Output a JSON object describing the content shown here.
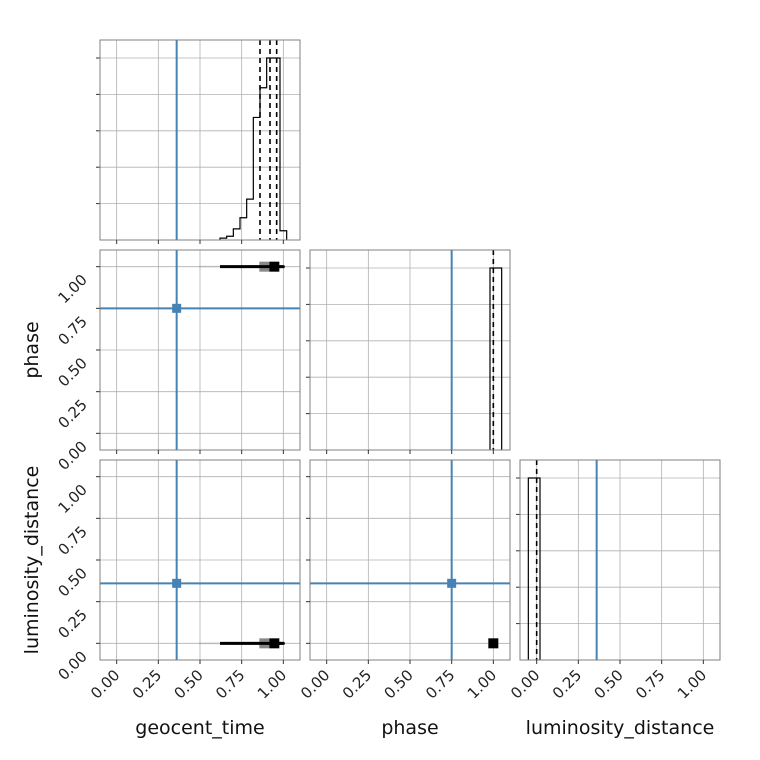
{
  "chart_data": {
    "type": "corner",
    "parameters": [
      "geocent_time",
      "phase",
      "luminosity_distance"
    ],
    "axis_range": [
      -0.1,
      1.1
    ],
    "ticks": [
      0.0,
      0.25,
      0.5,
      0.75,
      1.0
    ],
    "tick_labels": [
      "0.00",
      "0.25",
      "0.50",
      "0.75",
      "1.00"
    ],
    "grid": true,
    "truths": {
      "geocent_time": 0.36,
      "phase": 0.75,
      "luminosity_distance": 0.36,
      "color": "#4682b4"
    },
    "quantiles": {
      "geocent_time": [
        0.86,
        0.92,
        0.96
      ],
      "phase": [
        1.0
      ],
      "luminosity_distance": [
        0.0
      ]
    },
    "histograms": {
      "geocent_time": {
        "bin_edges": [
          0.62,
          0.66,
          0.7,
          0.74,
          0.78,
          0.82,
          0.86,
          0.9,
          0.94,
          0.98,
          1.02
        ],
        "counts": [
          0.01,
          0.02,
          0.06,
          0.12,
          0.22,
          0.66,
          0.82,
          0.98,
          0.98,
          0.05
        ]
      },
      "phase": {
        "bin_edges": [
          0.98,
          1.05
        ],
        "counts": [
          1.0
        ]
      },
      "luminosity_distance": {
        "bin_edges": [
          -0.05,
          0.02
        ],
        "counts": [
          1.0
        ]
      }
    },
    "samples_2d": [
      {
        "x": "geocent_time",
        "y": "phase",
        "x_range": [
          0.5,
          1.0
        ],
        "y_value": 1.0
      },
      {
        "x": "geocent_time",
        "y": "luminosity_distance",
        "x_range": [
          0.5,
          1.0
        ],
        "y_value": 0.0
      },
      {
        "x": "phase",
        "y": "luminosity_distance",
        "x_range": [
          0.99,
          1.01
        ],
        "y_value": 0.0
      }
    ],
    "colors": {
      "histogram": "#000000",
      "grid": "#b0b0b0",
      "frame": "#808080"
    }
  }
}
